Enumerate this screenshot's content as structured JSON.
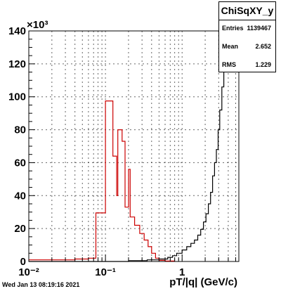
{
  "chart_data": {
    "type": "histogram",
    "title": "ChiSqXY_y",
    "xlabel": "pT/|q| (GeV/c)",
    "x_scale": "log",
    "xlim": [
      0.01,
      5.5
    ],
    "ylim": [
      0,
      140000
    ],
    "y_exponent_label": "×10³",
    "x_ticks": [
      {
        "value": 0.01,
        "label": "10⁻²"
      },
      {
        "value": 0.1,
        "label": "10⁻¹"
      },
      {
        "value": 1,
        "label": "1"
      }
    ],
    "y_ticks": [
      {
        "value": 0,
        "label": "0"
      },
      {
        "value": 20000,
        "label": "20"
      },
      {
        "value": 40000,
        "label": "40"
      },
      {
        "value": 60000,
        "label": "60"
      },
      {
        "value": 80000,
        "label": "80"
      },
      {
        "value": 100000,
        "label": "100"
      },
      {
        "value": 120000,
        "label": "120"
      },
      {
        "value": 140000,
        "label": "140"
      }
    ],
    "grid": true,
    "series": [
      {
        "color": "#000000",
        "points": [
          [
            0.01,
            0
          ],
          [
            0.1,
            0
          ],
          [
            0.2,
            500
          ],
          [
            0.35,
            1000
          ],
          [
            0.5,
            1500
          ],
          [
            0.65,
            2500
          ],
          [
            0.75,
            3500
          ],
          [
            0.85,
            5000
          ],
          [
            1.0,
            7000
          ],
          [
            1.15,
            9000
          ],
          [
            1.3,
            11000
          ],
          [
            1.45,
            13000
          ],
          [
            1.6,
            16000
          ],
          [
            1.75,
            19500
          ],
          [
            1.9,
            24000
          ],
          [
            2.05,
            29000
          ],
          [
            2.2,
            35000
          ],
          [
            2.35,
            42000
          ],
          [
            2.5,
            52000
          ],
          [
            2.65,
            60000
          ],
          [
            2.8,
            68000
          ],
          [
            2.95,
            80000
          ],
          [
            3.1,
            92000
          ],
          [
            3.3,
            106000
          ],
          [
            3.5,
            122000
          ],
          [
            3.7,
            140000
          ]
        ]
      },
      {
        "color": "#cc0000",
        "points": [
          [
            0.01,
            1000
          ],
          [
            0.04,
            1500
          ],
          [
            0.06,
            2000
          ],
          [
            0.075,
            29500
          ],
          [
            0.1,
            97500
          ],
          [
            0.125,
            64000
          ],
          [
            0.14,
            40000
          ],
          [
            0.145,
            80000
          ],
          [
            0.165,
            73000
          ],
          [
            0.18,
            33000
          ],
          [
            0.2,
            56000
          ],
          [
            0.21,
            27000
          ],
          [
            0.24,
            22000
          ],
          [
            0.28,
            17000
          ],
          [
            0.32,
            13000
          ],
          [
            0.36,
            9000
          ],
          [
            0.4,
            5000
          ],
          [
            0.45,
            2000
          ],
          [
            0.5,
            700
          ],
          [
            0.6,
            300
          ],
          [
            0.8,
            0
          ]
        ]
      }
    ]
  },
  "stats": {
    "title": "ChiSqXY_y",
    "rows": [
      {
        "label": "Entries",
        "value": "1139467"
      },
      {
        "label": "Mean",
        "value": "2.652"
      },
      {
        "label": "RMS",
        "value": "1.229"
      }
    ]
  },
  "timestamp": "Wed Jan 13 08:19:16 2021"
}
